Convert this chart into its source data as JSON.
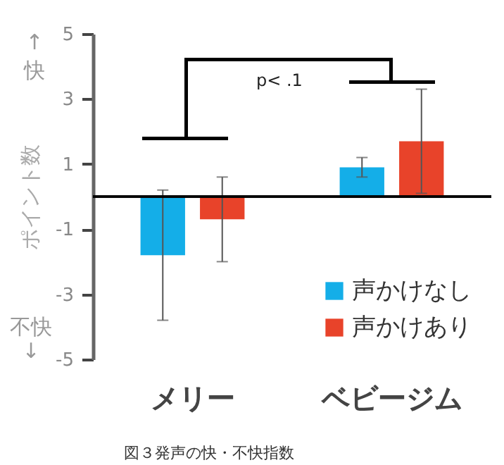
{
  "chart_data": {
    "type": "bar",
    "ylabel": "ポイント数",
    "categories": [
      "メリー",
      "ベビージム"
    ],
    "series": [
      {
        "name": "声かけなし",
        "color": "#14aee8",
        "values": [
          -1.8,
          0.9
        ],
        "errors": [
          2.0,
          0.3
        ]
      },
      {
        "name": "声かけあり",
        "color": "#e8432a",
        "values": [
          -0.7,
          1.7
        ],
        "errors": [
          1.3,
          1.6
        ]
      }
    ],
    "ylim": [
      -5,
      5
    ],
    "yticks": [
      -5,
      -3,
      -1,
      1,
      3,
      5
    ],
    "legend": "bottom right",
    "annotations": [
      "p< .1",
      "↑快",
      "不快↓",
      "図３発声の快・不快指数"
    ]
  }
}
